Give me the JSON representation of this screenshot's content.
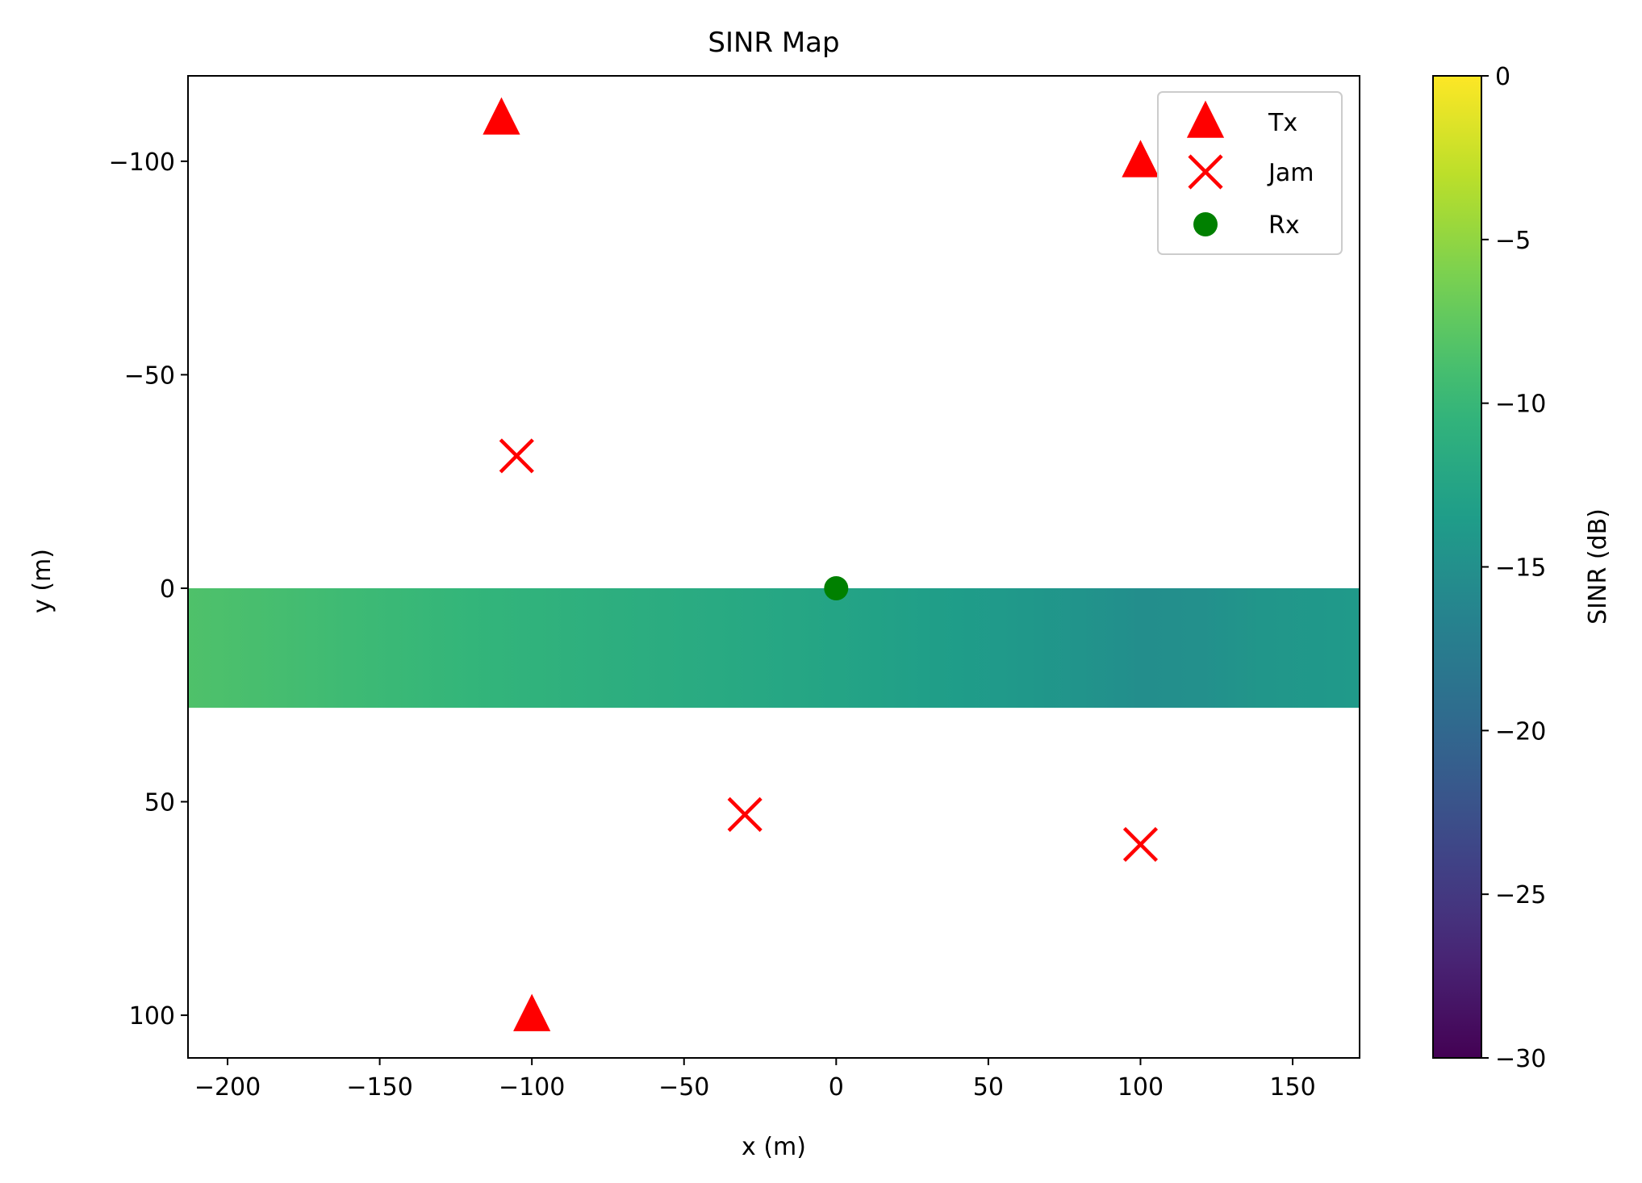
{
  "chart_data": {
    "type": "heatmap",
    "title": "SINR Map",
    "xlabel": "x (m)",
    "ylabel": "y (m)",
    "xlim": [
      -213,
      172
    ],
    "ylim": [
      -120,
      110
    ],
    "y_inverted": true,
    "x_ticks": [
      -200,
      -150,
      -100,
      -50,
      0,
      50,
      100,
      150
    ],
    "x_tick_labels": [
      "−200",
      "−150",
      "−100",
      "−50",
      "0",
      "50",
      "100",
      "150"
    ],
    "y_ticks": [
      -100,
      -50,
      0,
      50,
      100
    ],
    "y_tick_labels": [
      "−100",
      "−50",
      "0",
      "50",
      "100"
    ],
    "heatmap": {
      "x_range": [
        -213,
        172
      ],
      "y_range": [
        0,
        28
      ],
      "x_samples": [
        -213,
        -160,
        -120,
        -80,
        -40,
        0,
        40,
        80,
        100,
        120,
        140,
        172
      ],
      "sinr_db": [
        -8.5,
        -9.5,
        -10.3,
        -11.0,
        -11.8,
        -12.6,
        -13.5,
        -14.5,
        -15.2,
        -15.0,
        -14.3,
        -13.8
      ]
    },
    "series": [
      {
        "name": "Tx",
        "marker": "triangle-up",
        "color": "#ff0000",
        "points": [
          [
            -110,
            -110
          ],
          [
            100,
            -100
          ],
          [
            -100,
            100
          ]
        ]
      },
      {
        "name": "Jam",
        "marker": "x",
        "color": "#ff0000",
        "points": [
          [
            -105,
            -31
          ],
          [
            -30,
            53
          ],
          [
            100,
            60
          ]
        ]
      },
      {
        "name": "Rx",
        "marker": "circle",
        "color": "#008000",
        "points": [
          [
            0,
            0
          ]
        ]
      }
    ],
    "legend": {
      "placement": "top-right",
      "entries": [
        "Tx",
        "Jam",
        "Rx"
      ]
    },
    "colorbar": {
      "label": "SINR (dB)",
      "colormap": "viridis",
      "range": [
        -30,
        0
      ],
      "ticks": [
        0,
        -5,
        -10,
        -15,
        -20,
        -25,
        -30
      ],
      "tick_labels": [
        "0",
        "−5",
        "−10",
        "−15",
        "−20",
        "−25",
        "−30"
      ]
    },
    "grid": false
  }
}
